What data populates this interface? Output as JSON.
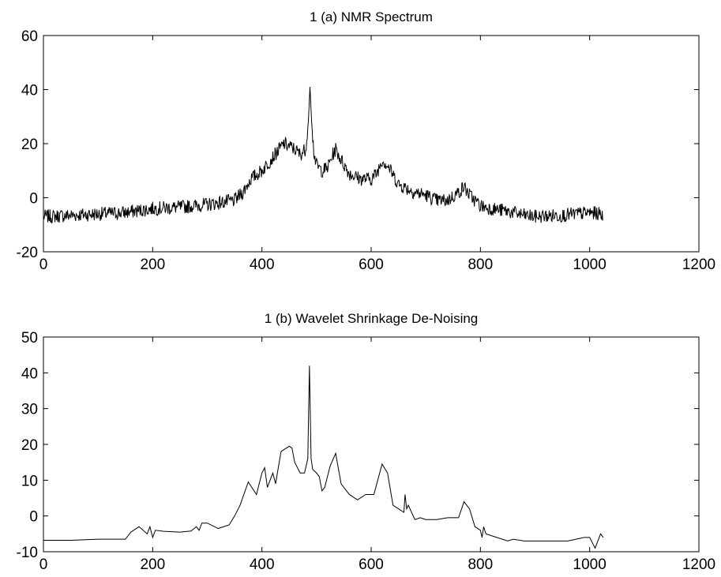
{
  "chart_data": [
    {
      "type": "line",
      "title": "1 (a) NMR Spectrum",
      "xlim": [
        0,
        1200
      ],
      "ylim": [
        -20,
        60
      ],
      "xticks": [
        0,
        200,
        400,
        600,
        800,
        1000,
        1200
      ],
      "yticks": [
        -20,
        0,
        20,
        40,
        60
      ],
      "grid": false,
      "line_color": "#000000",
      "noise_amplitude": 2.6,
      "series": [
        {
          "values_note": "",
          "x": [
            0,
            50,
            100,
            150,
            200,
            250,
            300,
            350,
            365,
            380,
            400,
            420,
            440,
            460,
            470,
            480,
            485,
            488,
            491,
            495,
            500,
            510,
            520,
            530,
            535,
            545,
            560,
            580,
            600,
            610,
            620,
            630,
            650,
            680,
            700,
            720,
            740,
            760,
            770,
            780,
            800,
            820,
            850,
            880,
            900,
            950,
            1000,
            1020,
            1024
          ],
          "y": [
            -7,
            -6.5,
            -6,
            -5.5,
            -4,
            -3.5,
            -2.5,
            -1,
            2,
            7,
            10,
            15,
            20,
            18,
            16,
            18,
            28,
            41,
            28,
            17,
            12,
            10,
            11,
            16,
            18,
            14,
            9,
            7,
            7,
            9,
            14,
            12,
            5,
            2,
            1,
            -1,
            -1,
            2,
            4,
            1,
            -3,
            -4,
            -5,
            -6.5,
            -7,
            -6.5,
            -5.5,
            -6,
            -7
          ]
        }
      ]
    },
    {
      "type": "line",
      "title": "1 (b) Wavelet Shrinkage De-Noising",
      "xlim": [
        0,
        1200
      ],
      "ylim": [
        -10,
        50
      ],
      "xticks": [
        0,
        200,
        400,
        600,
        800,
        1000,
        1200
      ],
      "yticks": [
        -10,
        0,
        10,
        20,
        30,
        40,
        50
      ],
      "grid": false,
      "line_color": "#000000",
      "noise_amplitude": 0,
      "series": [
        {
          "x": [
            0,
            50,
            100,
            150,
            160,
            175,
            190,
            195,
            200,
            205,
            220,
            250,
            270,
            280,
            285,
            290,
            300,
            320,
            340,
            350,
            360,
            375,
            390,
            400,
            405,
            410,
            420,
            425,
            435,
            450,
            455,
            460,
            470,
            478,
            484,
            487,
            490,
            493,
            500,
            505,
            510,
            515,
            520,
            525,
            535,
            545,
            555,
            560,
            575,
            590,
            605,
            620,
            630,
            640,
            650,
            660,
            662,
            665,
            668,
            680,
            690,
            700,
            720,
            740,
            760,
            770,
            780,
            790,
            800,
            803,
            806,
            810,
            830,
            850,
            860,
            880,
            900,
            930,
            960,
            990,
            1000,
            1005,
            1010,
            1015,
            1020,
            1025
          ],
          "y": [
            -6.8,
            -6.8,
            -6.5,
            -6.5,
            -4.5,
            -3,
            -5,
            -3,
            -6,
            -4,
            -4.3,
            -4.5,
            -4.2,
            -3,
            -4,
            -2,
            -2,
            -3.5,
            -2.5,
            0,
            3,
            9.5,
            6,
            12,
            13.5,
            8,
            12,
            9,
            18,
            19.5,
            19,
            15,
            12,
            12,
            16,
            42,
            16,
            13,
            12,
            11,
            7,
            8,
            11,
            14,
            17.5,
            9,
            7,
            6,
            4.5,
            6,
            6,
            14.5,
            12,
            3,
            2,
            1,
            6,
            2,
            3,
            -1,
            -0.5,
            -1,
            -1,
            -0.5,
            -0.5,
            4,
            2,
            -3,
            -4,
            -6,
            -3,
            -5,
            -6,
            -7,
            -6.5,
            -7,
            -7,
            -7,
            -7,
            -6,
            -6,
            -7.5,
            -9,
            -7,
            -5,
            -6
          ]
        }
      ]
    }
  ]
}
